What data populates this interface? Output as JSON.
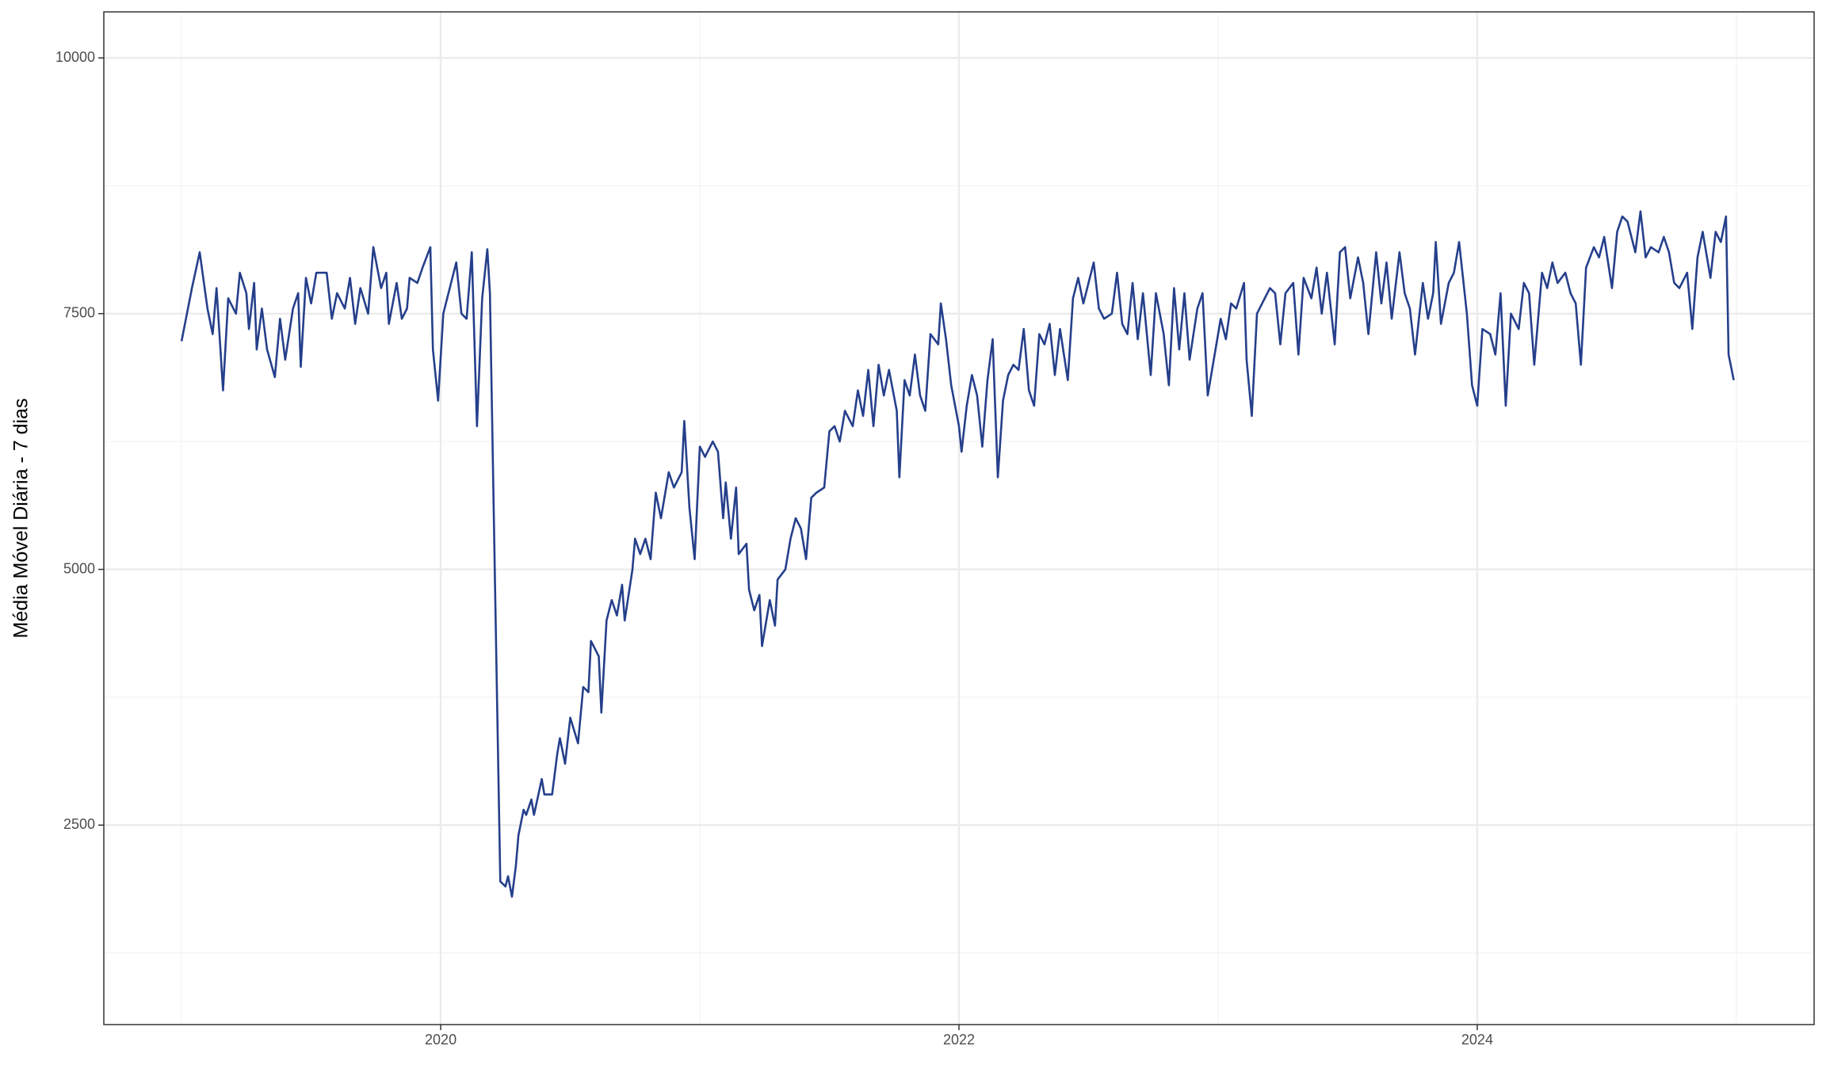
{
  "chart_data": {
    "type": "line",
    "ylabel": "Média Móvel Diária - 7 dias",
    "xlim": [
      2018.7,
      2025.3
    ],
    "xticks": [
      2020,
      2022,
      2024
    ],
    "ylim": [
      550,
      10450
    ],
    "yticks": [
      2500,
      5000,
      7500,
      10000
    ],
    "grid": true,
    "series": [
      {
        "color": "#253f8b",
        "x": [
          2019.0,
          2019.04,
          2019.07,
          2019.1,
          2019.12,
          2019.135,
          2019.16,
          2019.18,
          2019.21,
          2019.225,
          2019.25,
          2019.26,
          2019.28,
          2019.29,
          2019.31,
          2019.33,
          2019.36,
          2019.38,
          2019.4,
          2019.43,
          2019.45,
          2019.46,
          2019.48,
          2019.5,
          2019.52,
          2019.56,
          2019.58,
          2019.6,
          2019.63,
          2019.65,
          2019.67,
          2019.69,
          2019.72,
          2019.74,
          2019.77,
          2019.79,
          2019.8,
          2019.83,
          2019.85,
          2019.87,
          2019.88,
          2019.91,
          2019.93,
          2019.96,
          2019.97,
          2019.99,
          2020.01,
          2020.04,
          2020.06,
          2020.08,
          2020.1,
          2020.12,
          2020.14,
          2020.16,
          2020.18,
          2020.19,
          2020.21,
          2020.23,
          2020.25,
          2020.26,
          2020.275,
          2020.29,
          2020.3,
          2020.32,
          2020.33,
          2020.35,
          2020.36,
          2020.39,
          2020.4,
          2020.43,
          2020.45,
          2020.46,
          2020.48,
          2020.5,
          2020.53,
          2020.55,
          2020.57,
          2020.58,
          2020.61,
          2020.62,
          2020.64,
          2020.66,
          2020.68,
          2020.7,
          2020.71,
          2020.74,
          2020.75,
          2020.77,
          2020.79,
          2020.81,
          2020.83,
          2020.85,
          2020.88,
          2020.9,
          2020.93,
          2020.94,
          2020.96,
          2020.98,
          2021.0,
          2021.02,
          2021.05,
          2021.07,
          2021.09,
          2021.1,
          2021.12,
          2021.14,
          2021.15,
          2021.18,
          2021.19,
          2021.21,
          2021.23,
          2021.24,
          2021.27,
          2021.29,
          2021.3,
          2021.33,
          2021.35,
          2021.37,
          2021.39,
          2021.41,
          2021.43,
          2021.45,
          2021.48,
          2021.5,
          2021.52,
          2021.54,
          2021.56,
          2021.59,
          2021.61,
          2021.63,
          2021.65,
          2021.67,
          2021.69,
          2021.71,
          2021.73,
          2021.76,
          2021.77,
          2021.79,
          2021.81,
          2021.83,
          2021.85,
          2021.87,
          2021.89,
          2021.92,
          2021.93,
          2021.95,
          2021.97,
          2022.0,
          2022.01,
          2022.03,
          2022.05,
          2022.07,
          2022.09,
          2022.11,
          2022.13,
          2022.15,
          2022.17,
          2022.19,
          2022.21,
          2022.23,
          2022.25,
          2022.27,
          2022.29,
          2022.31,
          2022.33,
          2022.35,
          2022.37,
          2022.39,
          2022.42,
          2022.44,
          2022.46,
          2022.48,
          2022.5,
          2022.52,
          2022.54,
          2022.56,
          2022.59,
          2022.61,
          2022.63,
          2022.65,
          2022.67,
          2022.69,
          2022.71,
          2022.74,
          2022.76,
          2022.79,
          2022.81,
          2022.83,
          2022.85,
          2022.87,
          2022.89,
          2022.92,
          2022.94,
          2022.96,
          2022.98,
          2023.01,
          2023.03,
          2023.05,
          2023.07,
          2023.1,
          2023.11,
          2023.13,
          2023.15,
          2023.17,
          2023.2,
          2023.22,
          2023.24,
          2023.26,
          2023.29,
          2023.31,
          2023.33,
          2023.36,
          2023.38,
          2023.4,
          2023.42,
          2023.45,
          2023.47,
          2023.49,
          2023.51,
          2023.54,
          2023.56,
          2023.58,
          2023.61,
          2023.63,
          2023.65,
          2023.67,
          2023.7,
          2023.72,
          2023.74,
          2023.76,
          2023.79,
          2023.81,
          2023.83,
          2023.84,
          2023.86,
          2023.89,
          2023.91,
          2023.93,
          2023.96,
          2023.98,
          2024.0,
          2024.02,
          2024.05,
          2024.07,
          2024.09,
          2024.11,
          2024.13,
          2024.16,
          2024.18,
          2024.2,
          2024.22,
          2024.25,
          2024.27,
          2024.29,
          2024.31,
          2024.34,
          2024.36,
          2024.38,
          2024.4,
          2024.42,
          2024.45,
          2024.47,
          2024.49,
          2024.52,
          2024.54,
          2024.56,
          2024.58,
          2024.61,
          2024.63,
          2024.65,
          2024.67,
          2024.7,
          2024.72,
          2024.74,
          2024.76,
          2024.78,
          2024.81,
          2024.83,
          2024.85,
          2024.87,
          2024.9,
          2024.92,
          2024.94,
          2024.96,
          2024.97,
          2024.99
        ],
        "values": [
          7230,
          7750,
          8100,
          7550,
          7300,
          7750,
          6750,
          7650,
          7500,
          7900,
          7700,
          7350,
          7800,
          7150,
          7550,
          7150,
          6880,
          7450,
          7050,
          7550,
          7700,
          6980,
          7850,
          7600,
          7900,
          7900,
          7450,
          7700,
          7550,
          7850,
          7400,
          7750,
          7500,
          8150,
          7750,
          7900,
          7400,
          7800,
          7450,
          7550,
          7850,
          7800,
          7950,
          8150,
          7150,
          6650,
          7500,
          7800,
          8000,
          7500,
          7450,
          8100,
          6400,
          7650,
          8130,
          7700,
          4800,
          1950,
          1900,
          2000,
          1800,
          2100,
          2400,
          2650,
          2600,
          2750,
          2600,
          2950,
          2800,
          2800,
          3200,
          3350,
          3100,
          3550,
          3300,
          3850,
          3800,
          4300,
          4150,
          3600,
          4500,
          4700,
          4550,
          4850,
          4500,
          5000,
          5300,
          5150,
          5300,
          5100,
          5750,
          5500,
          5950,
          5800,
          5950,
          6450,
          5600,
          5100,
          6200,
          6100,
          6250,
          6150,
          5500,
          5850,
          5300,
          5800,
          5150,
          5250,
          4800,
          4600,
          4750,
          4250,
          4700,
          4450,
          4900,
          5000,
          5300,
          5500,
          5400,
          5100,
          5700,
          5750,
          5800,
          6350,
          6400,
          6250,
          6550,
          6400,
          6750,
          6500,
          6950,
          6400,
          7000,
          6700,
          6950,
          6550,
          5900,
          6850,
          6700,
          7100,
          6700,
          6550,
          7300,
          7200,
          7600,
          7250,
          6800,
          6400,
          6150,
          6600,
          6900,
          6700,
          6200,
          6850,
          7250,
          5900,
          6650,
          6900,
          7000,
          6950,
          7350,
          6750,
          6600,
          7300,
          7200,
          7400,
          6900,
          7350,
          6850,
          7650,
          7850,
          7600,
          7800,
          8000,
          7550,
          7450,
          7500,
          7900,
          7400,
          7300,
          7800,
          7250,
          7700,
          6900,
          7700,
          7300,
          6800,
          7750,
          7150,
          7700,
          7050,
          7550,
          7700,
          6700,
          7000,
          7450,
          7250,
          7600,
          7550,
          7800,
          7050,
          6500,
          7500,
          7600,
          7750,
          7700,
          7200,
          7700,
          7800,
          7100,
          7850,
          7650,
          7950,
          7500,
          7900,
          7200,
          8100,
          8150,
          7650,
          8050,
          7800,
          7300,
          8100,
          7600,
          8000,
          7450,
          8100,
          7700,
          7550,
          7100,
          7800,
          7450,
          7700,
          8200,
          7400,
          7800,
          7900,
          8200,
          7500,
          6800,
          6600,
          7350,
          7300,
          7100,
          7700,
          6600,
          7500,
          7350,
          7800,
          7700,
          7000,
          7900,
          7750,
          8000,
          7800,
          7900,
          7700,
          7600,
          7000,
          7950,
          8150,
          8050,
          8250,
          7750,
          8300,
          8450,
          8400,
          8100,
          8500,
          8050,
          8150,
          8100,
          8250,
          8100,
          7800,
          7750,
          7900,
          7350,
          8050,
          8300,
          7850,
          8300,
          8200,
          8450,
          7100,
          6850
        ]
      }
    ]
  }
}
